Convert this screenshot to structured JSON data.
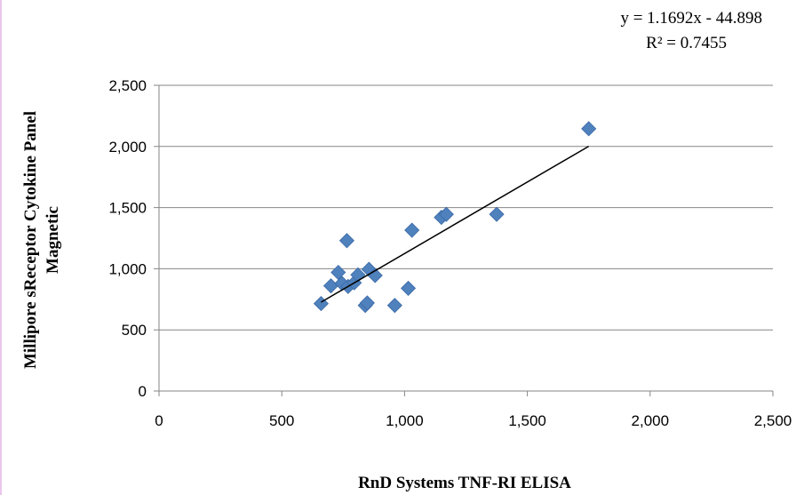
{
  "chart_data": {
    "type": "scatter",
    "xlabel": "RnD Systems TNF-RI ELISA",
    "ylabel_line1": "Millipore sReceptor Cytokine Panel",
    "ylabel_line2": "Magnetic",
    "xlim": [
      0,
      2500
    ],
    "ylim": [
      0,
      2500
    ],
    "xticks": [
      0,
      500,
      1000,
      1500,
      2000,
      2500
    ],
    "yticks": [
      0,
      500,
      1000,
      1500,
      2000,
      2500
    ],
    "xtick_labels": [
      "0",
      "500",
      "1,000",
      "1,500",
      "2,000",
      "2,500"
    ],
    "ytick_labels": [
      "0",
      "500",
      "1,000",
      "1,500",
      "2,000",
      "2,500"
    ],
    "grid": "horizontal",
    "marker_color": "#4f81bd",
    "trendline": {
      "type": "linear",
      "slope": 1.1692,
      "intercept": -44.898,
      "x_range": [
        660,
        1750
      ],
      "equation": "y = 1.1692x - 44.898",
      "r_squared": "R² = 0.7455"
    },
    "points": [
      {
        "x": 660,
        "y": 715
      },
      {
        "x": 700,
        "y": 860
      },
      {
        "x": 730,
        "y": 970
      },
      {
        "x": 745,
        "y": 880
      },
      {
        "x": 770,
        "y": 855
      },
      {
        "x": 765,
        "y": 1230
      },
      {
        "x": 795,
        "y": 885
      },
      {
        "x": 810,
        "y": 950
      },
      {
        "x": 840,
        "y": 700
      },
      {
        "x": 848,
        "y": 720
      },
      {
        "x": 855,
        "y": 995
      },
      {
        "x": 880,
        "y": 945
      },
      {
        "x": 960,
        "y": 700
      },
      {
        "x": 1015,
        "y": 840
      },
      {
        "x": 1030,
        "y": 1315
      },
      {
        "x": 1150,
        "y": 1420
      },
      {
        "x": 1170,
        "y": 1445
      },
      {
        "x": 1375,
        "y": 1445
      },
      {
        "x": 1750,
        "y": 2145
      }
    ]
  }
}
